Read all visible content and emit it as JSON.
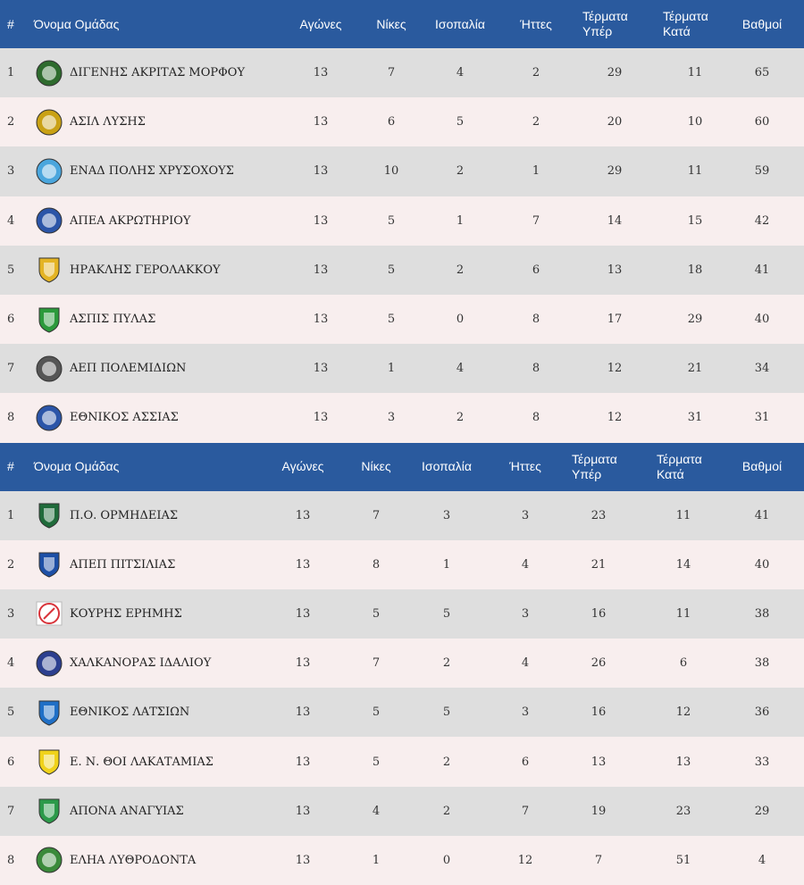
{
  "tables": [
    {
      "headers": {
        "pos": "#",
        "team": "Όνομα Ομάδας",
        "played": "Αγώνες",
        "wins": "Νίκες",
        "draws": "Ισοπαλία",
        "losses": "Ήττες",
        "gf_line1": "Τέρματα",
        "gf_line2": "Υπέρ",
        "ga_line1": "Τέρματα",
        "ga_line2": "Κατά",
        "points": "Βαθμοί"
      },
      "rows": [
        {
          "pos": "1",
          "team": "ΔΙΓΕΝΗΣ ΑΚΡΙΤΑΣ ΜΟΡΦΟΥ",
          "played": "13",
          "wins": "7",
          "draws": "4",
          "losses": "2",
          "gf": "29",
          "ga": "11",
          "points": "65",
          "logo_icon": "digenis-crest-icon",
          "logo_color": "#2e6b2e"
        },
        {
          "pos": "2",
          "team": "ΑΣΙΛ ΛΥΣΗΣ",
          "played": "13",
          "wins": "6",
          "draws": "5",
          "losses": "2",
          "gf": "20",
          "ga": "10",
          "points": "60",
          "logo_icon": "asil-crest-icon",
          "logo_color": "#c9a114"
        },
        {
          "pos": "3",
          "team": "ΕΝΑΔ ΠΟΛΗΣ ΧΡΥΣΟΧΟΥΣ",
          "played": "13",
          "wins": "10",
          "draws": "2",
          "losses": "1",
          "gf": "29",
          "ga": "11",
          "points": "59",
          "logo_icon": "enad-crest-icon",
          "logo_color": "#4aa6dd"
        },
        {
          "pos": "4",
          "team": "ΑΠΕΑ ΑΚΡΩΤΗΡΙΟΥ",
          "played": "13",
          "wins": "5",
          "draws": "1",
          "losses": "7",
          "gf": "14",
          "ga": "15",
          "points": "42",
          "logo_icon": "apea-crest-icon",
          "logo_color": "#2b55a8"
        },
        {
          "pos": "5",
          "team": "ΗΡΑΚΛΗΣ ΓΕΡΟΛΑΚΚΟΥ",
          "played": "13",
          "wins": "5",
          "draws": "2",
          "losses": "6",
          "gf": "13",
          "ga": "18",
          "points": "41",
          "logo_icon": "iraklis-crest-icon",
          "logo_color": "#e4b424"
        },
        {
          "pos": "6",
          "team": "ΑΣΠΙΣ ΠΥΛΑΣ",
          "played": "13",
          "wins": "5",
          "draws": "0",
          "losses": "8",
          "gf": "17",
          "ga": "29",
          "points": "40",
          "logo_icon": "aspis-crest-icon",
          "logo_color": "#2c9a3c"
        },
        {
          "pos": "7",
          "team": "ΑΕΠ ΠΟΛΕΜΙΔΙΩΝ",
          "played": "13",
          "wins": "1",
          "draws": "4",
          "losses": "8",
          "gf": "12",
          "ga": "21",
          "points": "34",
          "logo_icon": "aep-crest-icon",
          "logo_color": "#555555"
        },
        {
          "pos": "8",
          "team": "ΕΘΝΙΚΟΣ ΑΣΣΙΑΣ",
          "played": "13",
          "wins": "3",
          "draws": "2",
          "losses": "8",
          "gf": "12",
          "ga": "31",
          "points": "31",
          "logo_icon": "ethnikos-assias-crest-icon",
          "logo_color": "#2b55a8"
        }
      ]
    },
    {
      "headers": {
        "pos": "#",
        "team": "Όνομα Ομάδας",
        "played": "Αγώνες",
        "wins": "Νίκες",
        "draws": "Ισοπαλία",
        "losses": "Ήττες",
        "gf_line1": "Τέρματα",
        "gf_line2": "Υπέρ",
        "ga_line1": "Τέρματα",
        "ga_line2": "Κατά",
        "points": "Βαθμοί"
      },
      "rows": [
        {
          "pos": "1",
          "team": "Π.Ο. ΟΡΜΗΔΕΙΑΣ",
          "played": "13",
          "wins": "7",
          "draws": "3",
          "losses": "3",
          "gf": "23",
          "ga": "11",
          "points": "41",
          "logo_icon": "ormideia-crest-icon",
          "logo_color": "#1f6b3a"
        },
        {
          "pos": "2",
          "team": "ΑΠΕΠ ΠΙΤΣΙΛΙΑΣ",
          "played": "13",
          "wins": "8",
          "draws": "1",
          "losses": "4",
          "gf": "21",
          "ga": "14",
          "points": "40",
          "logo_icon": "apep-crest-icon",
          "logo_color": "#1d4fa6"
        },
        {
          "pos": "3",
          "team": "ΚΟΥΡΗΣ ΕΡΗΜΗΣ",
          "played": "13",
          "wins": "5",
          "draws": "5",
          "losses": "3",
          "gf": "16",
          "ga": "11",
          "points": "38",
          "logo_icon": "kouris-crest-icon",
          "logo_color": "#d8343a"
        },
        {
          "pos": "4",
          "team": "ΧΑΛΚΑΝΟΡΑΣ ΙΔΑΛΙΟΥ",
          "played": "13",
          "wins": "7",
          "draws": "2",
          "losses": "4",
          "gf": "26",
          "ga": "6",
          "points": "38",
          "logo_icon": "chalkanoras-crest-icon",
          "logo_color": "#2c3f8f"
        },
        {
          "pos": "5",
          "team": "ΕΘΝΙΚΟΣ ΛΑΤΣΙΩΝ",
          "played": "13",
          "wins": "5",
          "draws": "5",
          "losses": "3",
          "gf": "16",
          "ga": "12",
          "points": "36",
          "logo_icon": "ethnikos-latsion-crest-icon",
          "logo_color": "#1f6fc6"
        },
        {
          "pos": "6",
          "team": "Ε. Ν. ΘΟΙ ΛΑΚΑΤΑΜΙΑΣ",
          "played": "13",
          "wins": "5",
          "draws": "2",
          "losses": "6",
          "gf": "13",
          "ga": "13",
          "points": "33",
          "logo_icon": "thoi-crest-icon",
          "logo_color": "#f0d21a"
        },
        {
          "pos": "7",
          "team": "ΑΠΟΝΑ ΑΝΑΓΥΙΑΣ",
          "played": "13",
          "wins": "4",
          "draws": "2",
          "losses": "7",
          "gf": "19",
          "ga": "23",
          "points": "29",
          "logo_icon": "apona-crest-icon",
          "logo_color": "#2c9a4a"
        },
        {
          "pos": "8",
          "team": "ΕΛΗΑ ΛΥΘΡΟΔΟΝΤΑ",
          "played": "13",
          "wins": "1",
          "draws": "0",
          "losses": "12",
          "gf": "7",
          "ga": "51",
          "points": "4",
          "logo_icon": "elia-crest-icon",
          "logo_color": "#3a8a3a"
        }
      ]
    }
  ]
}
